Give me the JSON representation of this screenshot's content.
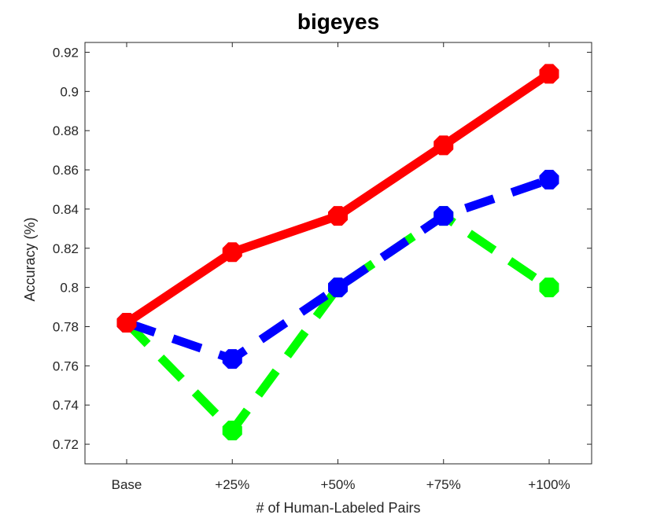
{
  "chart_data": {
    "type": "line",
    "title": "bigeyes",
    "xlabel": "# of Human-Labeled Pairs",
    "ylabel": "Accuracy (%)",
    "categories": [
      "Base",
      "+25%",
      "+50%",
      "+75%",
      "+100%"
    ],
    "ylim": [
      0.71,
      0.925
    ],
    "yticks": [
      0.72,
      0.74,
      0.76,
      0.78,
      0.8,
      0.82,
      0.84,
      0.86,
      0.88,
      0.9,
      0.92
    ],
    "ytick_labels": [
      "0.72",
      "0.74",
      "0.76",
      "0.78",
      "0.8",
      "0.82",
      "0.84",
      "0.86",
      "0.88",
      "0.9",
      "0.92"
    ],
    "grid": false,
    "series": [
      {
        "values": [
          0.782,
          0.818,
          0.8365,
          0.8725,
          0.909
        ],
        "color": "#ff0000",
        "style": "solid"
      },
      {
        "values": [
          0.782,
          0.7635,
          0.8,
          0.8365,
          0.855
        ],
        "color": "#0000ff",
        "style": "dashed"
      },
      {
        "values": [
          0.782,
          0.727,
          0.8,
          0.8365,
          0.8
        ],
        "color": "#00ff00",
        "style": "dashed"
      }
    ]
  }
}
